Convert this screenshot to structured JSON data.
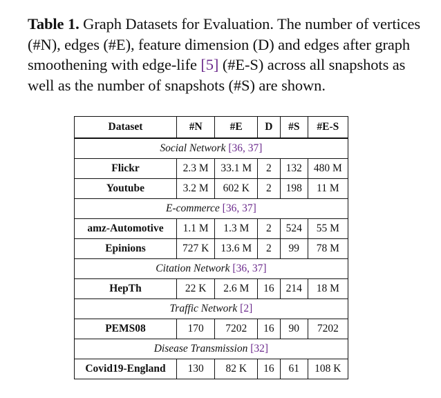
{
  "caption": {
    "label": "Table 1.",
    "text_before_cite": " Graph Datasets for Evaluation. The number of vertices (#N), edges (#E), feature dimension (D) and edges after graph smoothening with edge-life ",
    "cite": "[5]",
    "text_after_cite": " (#E-S) across all snapshots as well as the number of snapshots (#S) are shown."
  },
  "table": {
    "headers": [
      "Dataset",
      "#N",
      "#E",
      "D",
      "#S",
      "#E-S"
    ],
    "groups": [
      {
        "title": "Social Network",
        "cite_open": " [",
        "cites": [
          "36",
          "37"
        ],
        "cite_close": "]",
        "rows": [
          [
            "Flickr",
            "2.3 M",
            "33.1 M",
            "2",
            "132",
            "480 M"
          ],
          [
            "Youtube",
            "3.2 M",
            "602 K",
            "2",
            "198",
            "11 M"
          ]
        ]
      },
      {
        "title": "E-commerce",
        "cite_open": " [",
        "cites": [
          "36",
          "37"
        ],
        "cite_close": "]",
        "rows": [
          [
            "amz-Automotive",
            "1.1 M",
            "1.3 M",
            "2",
            "524",
            "55 M"
          ],
          [
            "Epinions",
            "727 K",
            "13.6 M",
            "2",
            "99",
            "78 M"
          ]
        ]
      },
      {
        "title": "Citation Network",
        "cite_open": " [",
        "cites": [
          "36",
          "37"
        ],
        "cite_close": "]",
        "rows": [
          [
            "HepTh",
            "22 K",
            "2.6 M",
            "16",
            "214",
            "18 M"
          ]
        ]
      },
      {
        "title": "Traffic Network",
        "cite_open": " [",
        "cites": [
          "2"
        ],
        "cite_close": "]",
        "rows": [
          [
            "PEMS08",
            "170",
            "7202",
            "16",
            "90",
            "7202"
          ]
        ]
      },
      {
        "title": "Disease Transmission",
        "cite_open": " [",
        "cites": [
          "32"
        ],
        "cite_close": "]",
        "rows": [
          [
            "Covid19-England",
            "130",
            "82 K",
            "16",
            "61",
            "108 K"
          ]
        ]
      }
    ]
  },
  "colors": {
    "citation": "#6b2a8c",
    "text": "#111111"
  }
}
